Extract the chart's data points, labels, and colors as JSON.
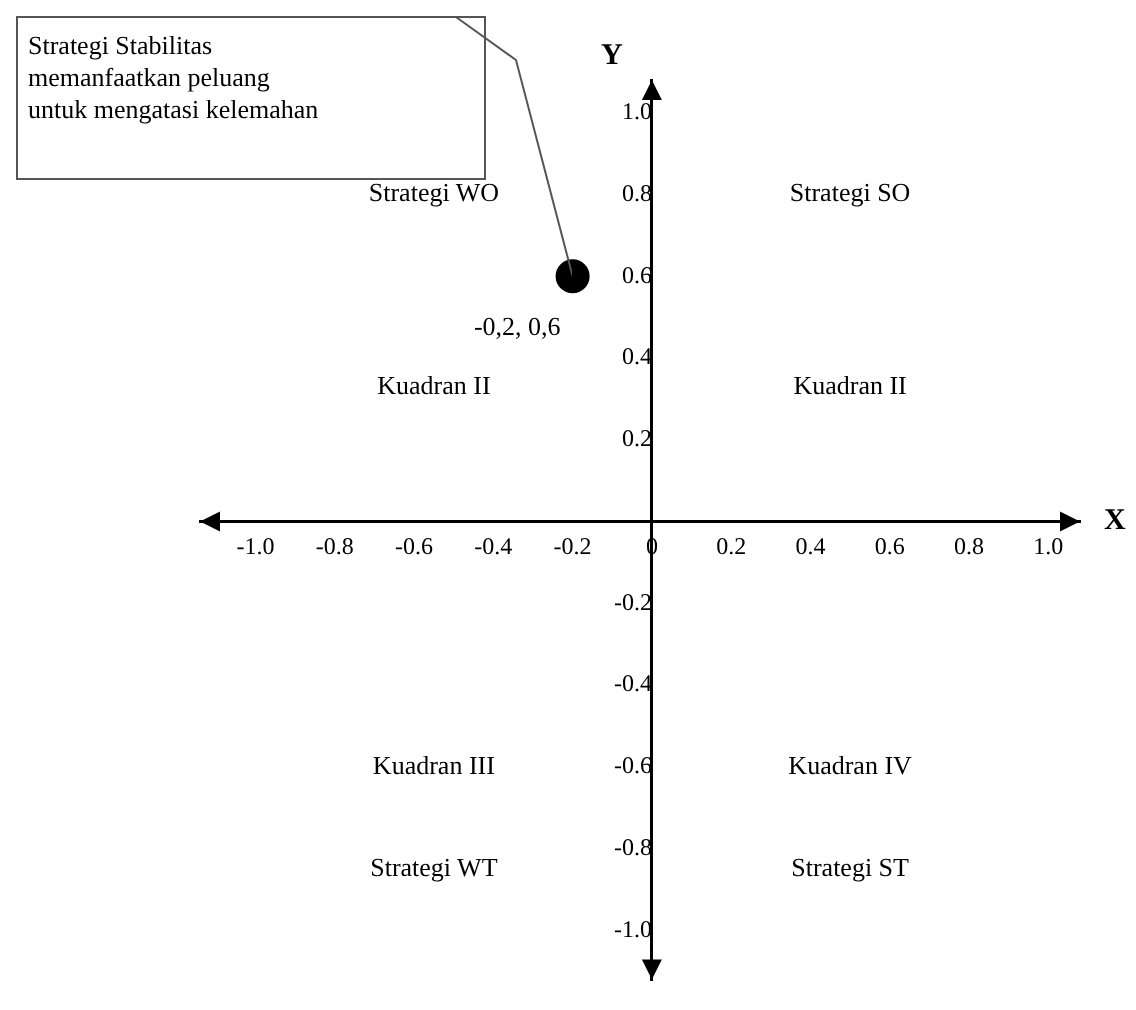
{
  "chart_data": {
    "type": "scatter",
    "xlabel": "X",
    "ylabel": "Y",
    "x": [
      -0.2
    ],
    "values": [
      0.6
    ],
    "color": "#000000",
    "marker": "circle",
    "value_labels": [
      "-0,2, 0,6"
    ],
    "xlim": [
      -1.14,
      1.08
    ],
    "ylim": [
      -1.12,
      1.08
    ],
    "xticks": [
      {
        "value": -1,
        "label": "-1.0"
      },
      {
        "value": -0.8,
        "label": "-0.8"
      },
      {
        "value": -0.6,
        "label": "-0.6"
      },
      {
        "value": -0.4,
        "label": "-0.4"
      },
      {
        "value": -0.2,
        "label": "-0.2"
      },
      0,
      {
        "value": 0.2,
        "label": "0.2"
      },
      {
        "value": 0.4,
        "label": "0.4"
      },
      {
        "value": 0.6,
        "label": "0.6"
      },
      {
        "value": 0.8,
        "label": "0.8"
      },
      {
        "value": 1,
        "label": "1.0"
      }
    ],
    "yticks": [
      {
        "value": -1,
        "label": "-1.0"
      },
      {
        "value": -0.8,
        "label": "-0.8"
      },
      {
        "value": -0.6,
        "label": "-0.6"
      },
      {
        "value": -0.4,
        "label": "-0.4"
      },
      {
        "value": -0.2,
        "label": "-0.2"
      },
      {
        "value": 0.2,
        "label": "0.2"
      },
      {
        "value": 0.4,
        "label": "0.4"
      },
      {
        "value": 0.6,
        "label": "0.6"
      },
      {
        "value": 0.8,
        "label": "0.8"
      },
      {
        "value": 1,
        "label": "1.0"
      }
    ],
    "grid": false,
    "legend": false,
    "annotations": [
      "Strategi Stabilitas\nmemanfaatkan peluang\nuntuk mengatasi kelemahan",
      "Strategi WO",
      "Strategi SO",
      "Kuadran II",
      "Kuadran II",
      "Kuadran III",
      "Kuadran IV",
      "Strategi WT",
      "Strategi ST"
    ]
  }
}
